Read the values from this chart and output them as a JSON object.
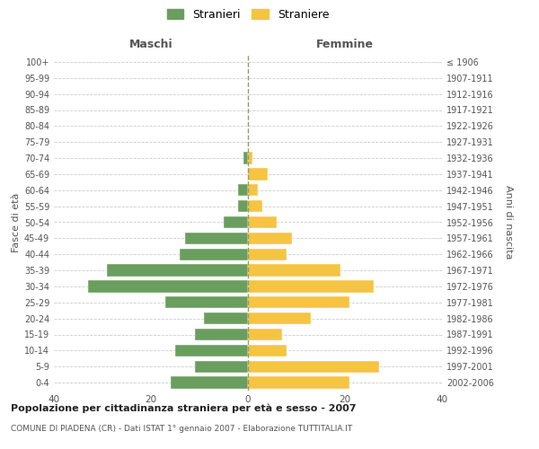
{
  "age_groups": [
    "0-4",
    "5-9",
    "10-14",
    "15-19",
    "20-24",
    "25-29",
    "30-34",
    "35-39",
    "40-44",
    "45-49",
    "50-54",
    "55-59",
    "60-64",
    "65-69",
    "70-74",
    "75-79",
    "80-84",
    "85-89",
    "90-94",
    "95-99",
    "100+"
  ],
  "birth_years": [
    "2002-2006",
    "1997-2001",
    "1992-1996",
    "1987-1991",
    "1982-1986",
    "1977-1981",
    "1972-1976",
    "1967-1971",
    "1962-1966",
    "1957-1961",
    "1952-1956",
    "1947-1951",
    "1942-1946",
    "1937-1941",
    "1932-1936",
    "1927-1931",
    "1922-1926",
    "1917-1921",
    "1912-1916",
    "1907-1911",
    "≤ 1906"
  ],
  "males": [
    16,
    11,
    15,
    11,
    9,
    17,
    33,
    29,
    14,
    13,
    5,
    2,
    2,
    0,
    1,
    0,
    0,
    0,
    0,
    0,
    0
  ],
  "females": [
    21,
    27,
    8,
    7,
    13,
    21,
    26,
    19,
    8,
    9,
    6,
    3,
    2,
    4,
    1,
    0,
    0,
    0,
    0,
    0,
    0
  ],
  "male_color": "#6a9e5e",
  "female_color": "#f5c443",
  "bg_color": "#ffffff",
  "grid_color": "#cccccc",
  "title_main": "Popolazione per cittadinanza straniera per età e sesso - 2007",
  "title_sub": "COMUNE DI PIADENA (CR) - Dati ISTAT 1° gennaio 2007 - Elaborazione TUTTITALIA.IT",
  "xlabel_left": "Maschi",
  "xlabel_right": "Femmine",
  "ylabel_left": "Fasce di età",
  "ylabel_right": "Anni di nascita",
  "legend_male": "Stranieri",
  "legend_female": "Straniere",
  "xlim": 40,
  "xticks": [
    -40,
    -20,
    0,
    20,
    40
  ],
  "xticklabels": [
    "40",
    "20",
    "0",
    "20",
    "40"
  ]
}
